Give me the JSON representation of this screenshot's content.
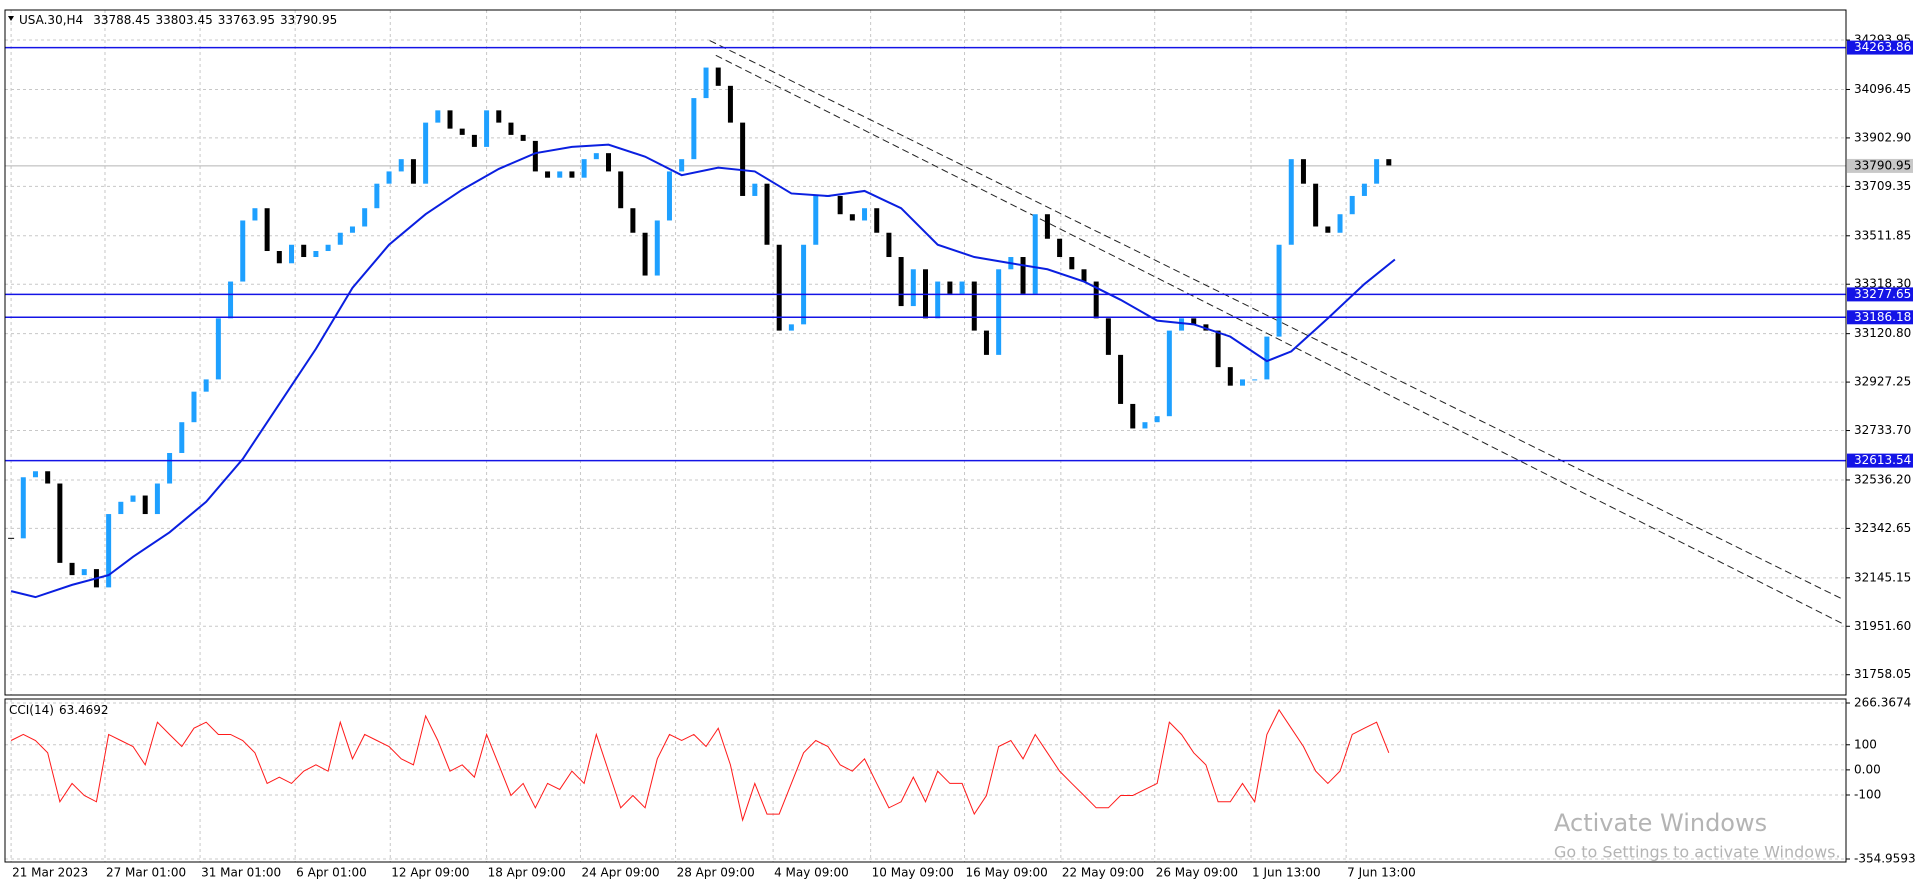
{
  "chart_data": [
    {
      "type": "candlestick",
      "symbol": "USA.30,H4",
      "ohlc": [
        33788.45,
        33803.45,
        33763.95,
        33790.95
      ],
      "values": [
        32303,
        32547,
        32571,
        32522,
        32205,
        32156,
        32180,
        32107,
        32400,
        32449,
        32474,
        32400,
        32522,
        32644,
        32767,
        32889,
        32938,
        33182,
        33329,
        33573,
        33622,
        33451,
        33402,
        33476,
        33427,
        33451,
        33476,
        33524,
        33549,
        33622,
        33720,
        33769,
        33818,
        33720,
        33964,
        34013,
        33940,
        33915,
        33867,
        34013,
        33964,
        33915,
        33891,
        33769,
        33744,
        33769,
        33744,
        33818,
        33842,
        33769,
        33622,
        33524,
        33353,
        33573,
        33769,
        33818,
        34062,
        34184,
        34111,
        33964,
        33671,
        33720,
        33476,
        33133,
        33158,
        33476,
        33671,
        33671,
        33598,
        33573,
        33622,
        33524,
        33427,
        33231,
        33378,
        33182,
        33329,
        33280,
        33329,
        33133,
        33036,
        33378,
        33427,
        33280,
        33598,
        33500,
        33427,
        33378,
        33329,
        33182,
        33036,
        32840,
        32742,
        32767,
        32791,
        33133,
        33182,
        33158,
        33133,
        32987,
        32913,
        32938,
        32938,
        33109,
        33476,
        33818,
        33720,
        33549,
        33524,
        33598,
        33671,
        33720,
        33818,
        33793
      ],
      "up_color": "#1ea0ff",
      "down_color": "#000000",
      "xlim": [
        -0.5,
        150.5
      ],
      "xticks": [
        {
          "value": 0,
          "label": "21 Mar 2023"
        },
        {
          "value": 7.7,
          "label": "27 Mar 01:00"
        },
        {
          "value": 15.5,
          "label": "31 Mar 01:00"
        },
        {
          "value": 23.3,
          "label": "6 Apr 01:00"
        },
        {
          "value": 31.1,
          "label": "12 Apr 09:00"
        },
        {
          "value": 39,
          "label": "18 Apr 09:00"
        },
        {
          "value": 46.7,
          "label": "24 Apr 09:00"
        },
        {
          "value": 54.5,
          "label": "28 Apr 09:00"
        },
        {
          "value": 62.5,
          "label": "4 May 09:00"
        },
        {
          "value": 70.5,
          "label": "10 May 09:00"
        },
        {
          "value": 78.2,
          "label": "16 May 09:00"
        },
        {
          "value": 86.1,
          "label": "22 May 09:00"
        },
        {
          "value": 93.8,
          "label": "26 May 09:00"
        },
        {
          "value": 101.7,
          "label": "1 Jun 13:00"
        },
        {
          "value": 109.5,
          "label": "7 Jun 13:00"
        }
      ],
      "ylim": [
        31677,
        34414
      ],
      "yticks": [
        34293.95,
        34096.45,
        {
          "value": 33902.9,
          "label": "33902.90"
        },
        33709.35,
        33511.85,
        {
          "value": 33318.3,
          "label": "33318.30"
        },
        {
          "value": 33120.8,
          "label": "33120.80"
        },
        32927.25,
        {
          "value": 32733.7,
          "label": "32733.70"
        },
        {
          "value": 32536.2,
          "label": "32536.20"
        },
        32342.65,
        32145.15,
        {
          "value": 31951.6,
          "label": "31951.60"
        },
        31758.05
      ],
      "grid": true,
      "moving_average": {
        "color": "#0a1fe0",
        "x": [
          0,
          2,
          5,
          8,
          10,
          13,
          16,
          19,
          22,
          25,
          28,
          31,
          34,
          37,
          40,
          43,
          46,
          49,
          52,
          55,
          58,
          61,
          64,
          67,
          70,
          73,
          76,
          79,
          82,
          85,
          88,
          91,
          94,
          97,
          100,
          103,
          105,
          108,
          111,
          113.5
        ],
        "values": [
          32092,
          32068,
          32117,
          32156,
          32229,
          32327,
          32449,
          32620,
          32840,
          33060,
          33304,
          33476,
          33598,
          33696,
          33779,
          33842,
          33867,
          33876,
          33828,
          33754,
          33784,
          33769,
          33681,
          33671,
          33691,
          33622,
          33476,
          33427,
          33402,
          33378,
          33329,
          33256,
          33173,
          33158,
          33109,
          33011,
          33050,
          33182,
          33319,
          33417
        ]
      },
      "levels": [
        {
          "value": 34263.86,
          "color": "#1414e6"
        },
        {
          "value": 33277.65,
          "color": "#1414e6"
        },
        {
          "value": 33186.18,
          "color": "#1414e6"
        },
        {
          "value": 32613.54,
          "color": "#1414e6"
        }
      ],
      "current_price": 33790.95,
      "trendlines": [
        {
          "x": [
            57.3,
            150.3
          ],
          "values": [
            34292,
            32058
          ]
        },
        {
          "x": [
            57.8,
            150.3
          ],
          "values": [
            34233,
            31960
          ]
        }
      ]
    },
    {
      "type": "line",
      "name": "CCI(14)",
      "value": 63.4692,
      "color": "#ff1a1a",
      "values": [
        117,
        141,
        117,
        68,
        -127,
        -54,
        -102,
        -127,
        141,
        117,
        93,
        20,
        190,
        141,
        93,
        166,
        190,
        141,
        141,
        117,
        68,
        -54,
        -29,
        -54,
        -5,
        20,
        -5,
        190,
        44,
        141,
        117,
        93,
        44,
        20,
        215,
        117,
        -5,
        20,
        -29,
        141,
        20,
        -102,
        -54,
        -151,
        -54,
        -78,
        -5,
        -54,
        141,
        -5,
        -151,
        -102,
        -151,
        44,
        141,
        117,
        141,
        93,
        166,
        20,
        -200,
        -54,
        -176,
        -176,
        -54,
        68,
        117,
        93,
        20,
        -5,
        44,
        -54,
        -151,
        -127,
        -29,
        -127,
        -5,
        -54,
        -54,
        -176,
        -102,
        93,
        117,
        44,
        141,
        68,
        -5,
        -54,
        -102,
        -151,
        -151,
        -102,
        -102,
        -78,
        -54,
        190,
        141,
        68,
        20,
        -127,
        -127,
        -54,
        -127,
        141,
        239,
        166,
        93,
        -5,
        -54,
        -5,
        141,
        166,
        190,
        68
      ],
      "xlim": [
        -0.5,
        150.5
      ],
      "ylim": [
        -354.9593,
        266.3674
      ],
      "yticks": [
        266.3674,
        100,
        {
          "value": 0,
          "label": "0.00"
        },
        -100,
        -354.9593
      ],
      "grid": true
    }
  ],
  "watermark": {
    "title": "Activate Windows",
    "subtitle": "Go to Settings to activate Windows."
  }
}
